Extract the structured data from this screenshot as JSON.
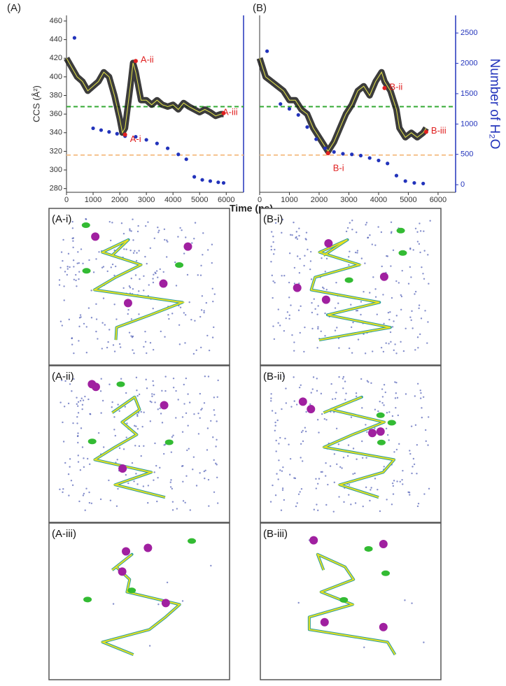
{
  "chart_data": [
    {
      "type": "line",
      "panel_label": "(A)",
      "ylabel": "CCS (Å²)",
      "xlabel": "Time (ps)",
      "xlim": [
        0,
        6650
      ],
      "xticks": [
        0,
        1000,
        2000,
        3000,
        4000,
        5000,
        6000
      ],
      "ylim": [
        276,
        466
      ],
      "yticks": [
        280,
        300,
        320,
        340,
        360,
        380,
        400,
        420,
        440,
        460
      ],
      "y2lim": [
        -125,
        2790
      ],
      "hlines": [
        {
          "value": 368,
          "color": "#33aa33"
        },
        {
          "value": 316,
          "color": "#f5c08a"
        }
      ],
      "series": [
        {
          "color": "#1a1a1a",
          "x": [
            0,
            200,
            400,
            600,
            800,
            1000,
            1200,
            1400,
            1600,
            1800,
            2000,
            2100,
            2200,
            2400,
            2500,
            2600,
            2800,
            3000,
            3200,
            3400,
            3600,
            3800,
            4000,
            4200,
            4400,
            4600,
            4800,
            5000,
            5200,
            5400,
            5600,
            5800,
            5900
          ],
          "values": [
            420,
            410,
            400,
            395,
            385,
            390,
            395,
            405,
            400,
            380,
            355,
            340,
            345,
            390,
            415,
            405,
            375,
            375,
            370,
            375,
            370,
            368,
            370,
            365,
            372,
            368,
            365,
            362,
            365,
            362,
            358,
            360,
            360
          ]
        },
        {
          "color": "#2233bb",
          "axis": "y2",
          "x": [
            300,
            1000,
            1300,
            1600,
            1900,
            2200,
            2600,
            3000,
            3400,
            3800,
            4200,
            4500,
            4800,
            5100,
            5400,
            5700,
            5900
          ],
          "values": [
            2420,
            930,
            900,
            870,
            840,
            800,
            790,
            740,
            680,
            600,
            500,
            420,
            130,
            80,
            60,
            40,
            30
          ]
        }
      ],
      "annotations": [
        {
          "text": "A-i",
          "x": 2200,
          "y": 338
        },
        {
          "text": "A-ii",
          "x": 2600,
          "y": 417
        },
        {
          "text": "A-iii",
          "x": 5900,
          "y": 361
        }
      ]
    },
    {
      "type": "line",
      "panel_label": "(B)",
      "y2label": "Number of H₂O",
      "xlim": [
        0,
        6590
      ],
      "xticks": [
        0,
        1000,
        2000,
        3000,
        4000,
        5000,
        6000
      ],
      "ylim": [
        276,
        466
      ],
      "y2lim": [
        -125,
        2790
      ],
      "y2ticks": [
        0,
        500,
        1000,
        1500,
        2000,
        2500
      ],
      "hlines": [
        {
          "value": 368,
          "color": "#33aa33"
        },
        {
          "value": 316,
          "color": "#f5c08a"
        }
      ],
      "series": [
        {
          "color": "#1a1a1a",
          "x": [
            0,
            200,
            400,
            600,
            800,
            1000,
            1200,
            1400,
            1600,
            1800,
            2000,
            2200,
            2300,
            2500,
            2700,
            2900,
            3100,
            3300,
            3500,
            3700,
            3900,
            4100,
            4200,
            4400,
            4600,
            4700,
            4900,
            5100,
            5300,
            5500,
            5600
          ],
          "values": [
            420,
            400,
            395,
            390,
            385,
            375,
            375,
            365,
            360,
            345,
            335,
            325,
            320,
            330,
            345,
            360,
            370,
            385,
            390,
            380,
            395,
            405,
            395,
            385,
            365,
            345,
            335,
            340,
            335,
            340,
            345
          ]
        },
        {
          "color": "#2233bb",
          "axis": "y2",
          "x": [
            250,
            700,
            1000,
            1300,
            1600,
            1900,
            2200,
            2500,
            2800,
            3100,
            3400,
            3700,
            4000,
            4300,
            4600,
            4900,
            5200,
            5500
          ],
          "values": [
            2200,
            1330,
            1250,
            1150,
            950,
            750,
            600,
            540,
            510,
            500,
            480,
            440,
            400,
            350,
            150,
            60,
            30,
            20
          ]
        }
      ],
      "annotations": [
        {
          "text": "B-i",
          "x": 2300,
          "y": 318
        },
        {
          "text": "B-ii",
          "x": 4200,
          "y": 388
        },
        {
          "text": "B-iii",
          "x": 5600,
          "y": 341
        }
      ]
    }
  ],
  "panels": [
    {
      "label": "(A-i)"
    },
    {
      "label": "(B-i)"
    },
    {
      "label": "(A-ii)"
    },
    {
      "label": "(B-ii)"
    },
    {
      "label": "(A-iii)"
    },
    {
      "label": "(B-iii)"
    }
  ]
}
